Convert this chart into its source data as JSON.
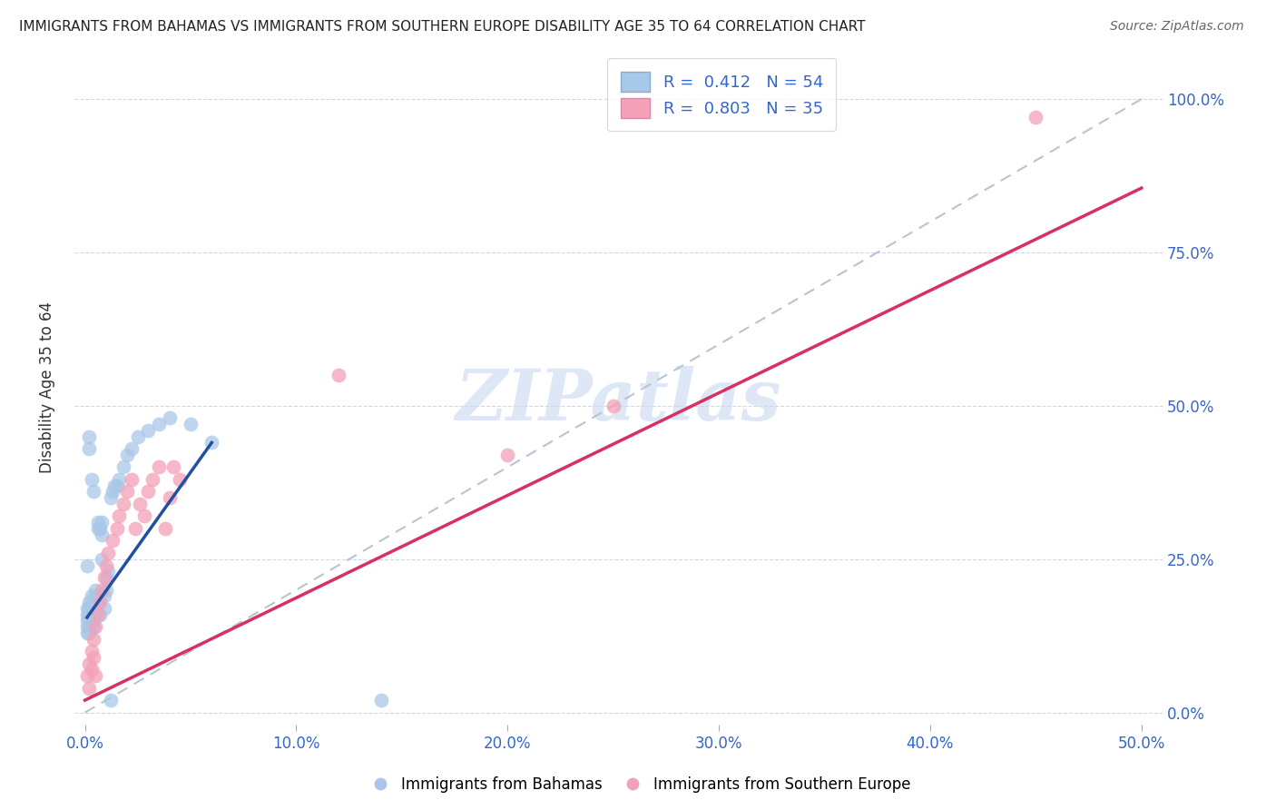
{
  "title": "IMMIGRANTS FROM BAHAMAS VS IMMIGRANTS FROM SOUTHERN EUROPE DISABILITY AGE 35 TO 64 CORRELATION CHART",
  "source": "Source: ZipAtlas.com",
  "ylabel": "Disability Age 35 to 64",
  "color_blue": "#a8c8e8",
  "color_pink": "#f4a0b8",
  "line_blue": "#2050a0",
  "line_pink": "#d83060",
  "line_dashed_color": "#b8c4d4",
  "watermark": "ZIPatlas",
  "watermark_color": "#c8d8f0",
  "x_tick_vals": [
    0.0,
    0.1,
    0.2,
    0.3,
    0.4,
    0.5
  ],
  "x_tick_labels": [
    "0.0%",
    "10.0%",
    "20.0%",
    "30.0%",
    "40.0%",
    "50.0%"
  ],
  "y_tick_vals": [
    0.0,
    0.25,
    0.5,
    0.75,
    1.0
  ],
  "y_tick_labels_right": [
    "0.0%",
    "25.0%",
    "50.0%",
    "75.0%",
    "100.0%"
  ],
  "xlim": [
    -0.005,
    0.51
  ],
  "ylim": [
    -0.02,
    1.08
  ],
  "scatter_blue_x": [
    0.001,
    0.001,
    0.001,
    0.001,
    0.001,
    0.002,
    0.002,
    0.002,
    0.002,
    0.002,
    0.002,
    0.002,
    0.003,
    0.003,
    0.003,
    0.003,
    0.004,
    0.004,
    0.004,
    0.005,
    0.005,
    0.005,
    0.006,
    0.006,
    0.006,
    0.007,
    0.007,
    0.008,
    0.008,
    0.009,
    0.009,
    0.01,
    0.01,
    0.011,
    0.012,
    0.013,
    0.014,
    0.015,
    0.016,
    0.018,
    0.02,
    0.022,
    0.025,
    0.03,
    0.035,
    0.04,
    0.05,
    0.06,
    0.008,
    0.003,
    0.004,
    0.001,
    0.012,
    0.14
  ],
  "scatter_blue_y": [
    0.17,
    0.16,
    0.15,
    0.14,
    0.13,
    0.45,
    0.43,
    0.18,
    0.17,
    0.16,
    0.14,
    0.13,
    0.19,
    0.18,
    0.17,
    0.15,
    0.16,
    0.15,
    0.14,
    0.2,
    0.19,
    0.17,
    0.31,
    0.3,
    0.18,
    0.3,
    0.16,
    0.31,
    0.29,
    0.19,
    0.17,
    0.22,
    0.2,
    0.23,
    0.35,
    0.36,
    0.37,
    0.37,
    0.38,
    0.4,
    0.42,
    0.43,
    0.45,
    0.46,
    0.47,
    0.48,
    0.47,
    0.44,
    0.25,
    0.38,
    0.36,
    0.24,
    0.02,
    0.02
  ],
  "scatter_pink_x": [
    0.001,
    0.002,
    0.002,
    0.003,
    0.003,
    0.004,
    0.004,
    0.005,
    0.005,
    0.006,
    0.007,
    0.008,
    0.009,
    0.01,
    0.011,
    0.013,
    0.015,
    0.016,
    0.018,
    0.02,
    0.022,
    0.024,
    0.026,
    0.028,
    0.03,
    0.032,
    0.035,
    0.038,
    0.04,
    0.042,
    0.045,
    0.12,
    0.2,
    0.25,
    0.45
  ],
  "scatter_pink_y": [
    0.06,
    0.08,
    0.04,
    0.1,
    0.07,
    0.12,
    0.09,
    0.14,
    0.06,
    0.16,
    0.18,
    0.2,
    0.22,
    0.24,
    0.26,
    0.28,
    0.3,
    0.32,
    0.34,
    0.36,
    0.38,
    0.3,
    0.34,
    0.32,
    0.36,
    0.38,
    0.4,
    0.3,
    0.35,
    0.4,
    0.38,
    0.55,
    0.42,
    0.5,
    0.97
  ],
  "blue_line_x": [
    0.001,
    0.06
  ],
  "blue_line_y": [
    0.155,
    0.44
  ],
  "pink_line_x": [
    0.0,
    0.5
  ],
  "pink_line_y": [
    0.02,
    0.855
  ]
}
